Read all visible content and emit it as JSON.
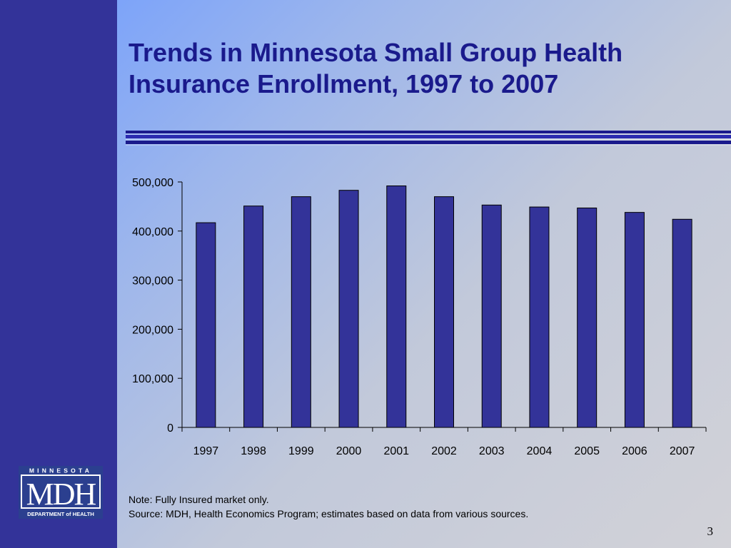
{
  "slide": {
    "title": "Trends in Minnesota Small Group Health Insurance Enrollment, 1997 to 2007",
    "note": "Note: Fully Insured market only.",
    "source": "Source: MDH, Health Economics Program; estimates based on data from various sources.",
    "page_number": "3",
    "logo": {
      "top_text": "MINNESOTA",
      "main_text": "MDH",
      "bottom_text": "DEPARTMENT of HEALTH"
    },
    "colors": {
      "left_band": "#333399",
      "title": "#1a1a8c",
      "bars": "#333399",
      "logo": "#2b3f8f"
    }
  },
  "chart_data": {
    "type": "bar",
    "title": "",
    "xlabel": "",
    "ylabel": "",
    "categories": [
      "1997",
      "1998",
      "1999",
      "2000",
      "2001",
      "2002",
      "2003",
      "2004",
      "2005",
      "2006",
      "2007"
    ],
    "values": [
      417000,
      451000,
      470000,
      483000,
      492000,
      470000,
      453000,
      449000,
      447000,
      438000,
      424000
    ],
    "ylim": [
      0,
      500000
    ],
    "yticks": [
      0,
      100000,
      200000,
      300000,
      400000,
      500000
    ],
    "ytick_labels": [
      "0",
      "100,000",
      "200,000",
      "300,000",
      "400,000",
      "500,000"
    ],
    "grid": false,
    "legend": "none"
  }
}
